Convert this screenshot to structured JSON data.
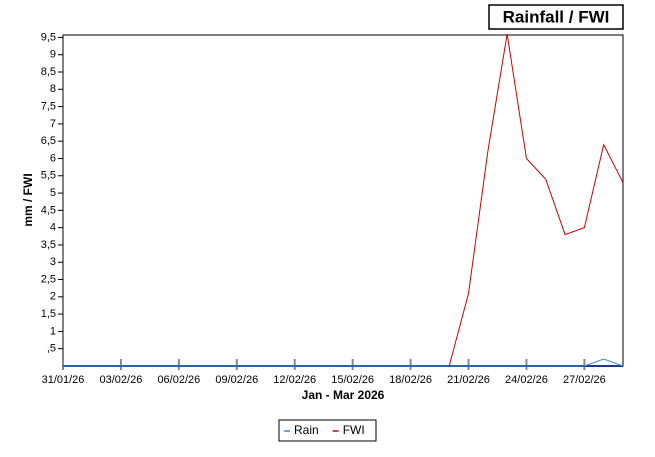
{
  "chart_data": {
    "type": "line",
    "title": "Rainfall / FWI",
    "ylabel": "mm / FWI",
    "xlabel": "Jan - Mar 2026",
    "x": [
      "2026-01-31",
      "2026-02-01",
      "2026-02-02",
      "2026-02-03",
      "2026-02-04",
      "2026-02-05",
      "2026-02-06",
      "2026-02-07",
      "2026-02-08",
      "2026-02-09",
      "2026-02-10",
      "2026-02-11",
      "2026-02-12",
      "2026-02-13",
      "2026-02-14",
      "2026-02-15",
      "2026-02-16",
      "2026-02-17",
      "2026-02-18",
      "2026-02-19",
      "2026-02-20",
      "2026-02-21",
      "2026-02-22",
      "2026-02-23",
      "2026-02-24",
      "2026-02-25",
      "2026-02-26",
      "2026-02-27",
      "2026-02-28",
      "2026-03-01"
    ],
    "series": [
      {
        "name": "Rain",
        "color": "#3a8fd0",
        "values": [
          0,
          0,
          0,
          0,
          0,
          0,
          0,
          0,
          0,
          0,
          0,
          0,
          0,
          0,
          0,
          0,
          0,
          0,
          0,
          0,
          0,
          0,
          0,
          0,
          0,
          0,
          0,
          0,
          0.2,
          0
        ]
      },
      {
        "name": "FWI",
        "color": "#cc0000",
        "values": [
          null,
          null,
          null,
          null,
          null,
          null,
          null,
          null,
          null,
          null,
          null,
          null,
          null,
          null,
          null,
          null,
          null,
          null,
          null,
          null,
          0,
          2.1,
          6.2,
          9.6,
          6.0,
          5.4,
          3.8,
          4.0,
          6.4,
          5.3
        ]
      }
    ],
    "xlim": [
      "2026-01-31",
      "2026-03-01"
    ],
    "xticks": [
      {
        "value": "2026-01-31",
        "label": "31/01/26"
      },
      {
        "value": "2026-02-03",
        "label": "03/02/26"
      },
      {
        "value": "2026-02-06",
        "label": "06/02/26"
      },
      {
        "value": "2026-02-09",
        "label": "09/02/26"
      },
      {
        "value": "2026-02-12",
        "label": "12/02/26"
      },
      {
        "value": "2026-02-15",
        "label": "15/02/26"
      },
      {
        "value": "2026-02-18",
        "label": "18/02/26"
      },
      {
        "value": "2026-02-21",
        "label": "21/02/26"
      },
      {
        "value": "2026-02-24",
        "label": "24/02/26"
      },
      {
        "value": "2026-02-27",
        "label": "27/02/26"
      }
    ],
    "ylim": [
      0,
      9.57
    ],
    "yticks": [
      {
        "value": 0.5,
        "label": ",5"
      },
      1,
      {
        "value": 1.5,
        "label": "1,5"
      },
      2,
      {
        "value": 2.5,
        "label": "2,5"
      },
      3,
      {
        "value": 3.5,
        "label": "3,5"
      },
      4,
      {
        "value": 4.5,
        "label": "4,5"
      },
      5,
      {
        "value": 5.5,
        "label": "5,5"
      },
      6,
      {
        "value": 6.5,
        "label": "6,5"
      },
      7,
      {
        "value": 7.5,
        "label": "7,5"
      },
      8,
      {
        "value": 8.5,
        "label": "8,5"
      },
      9,
      {
        "value": 9.5,
        "label": "9,5"
      }
    ],
    "legend": "bottom"
  }
}
